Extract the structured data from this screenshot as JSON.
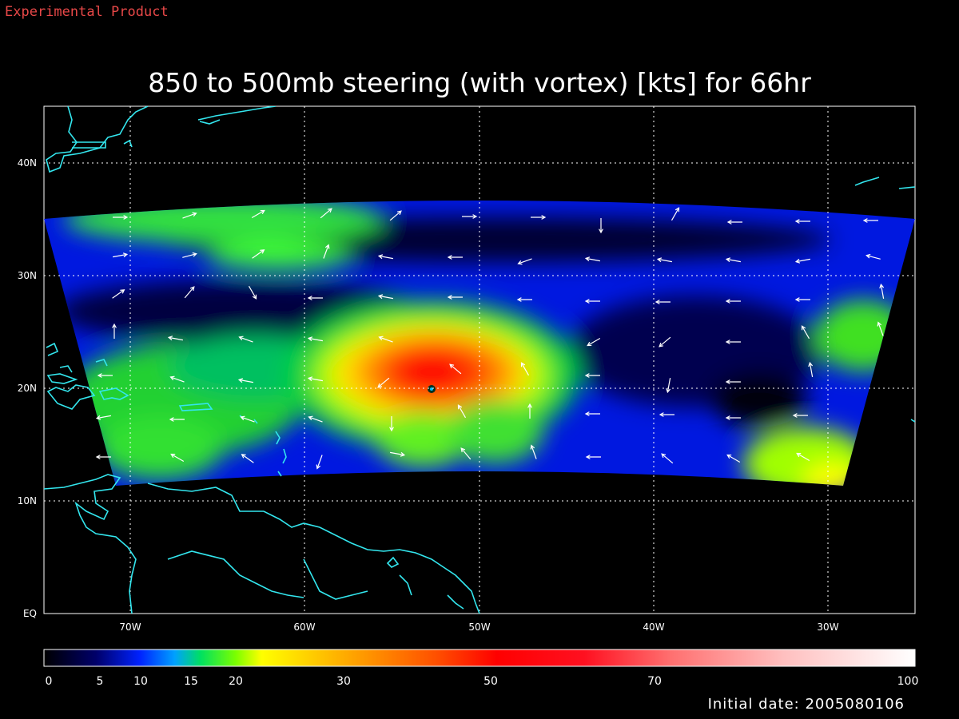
{
  "header": {
    "experimental_label": "Experimental Product"
  },
  "title": "850 to 500mb steering (with vortex) [kts] for 66hr",
  "axes": {
    "lon_labels": [
      "70W",
      "60W",
      "50W",
      "40W",
      "30W"
    ],
    "lat_labels": [
      "EQ",
      "10N",
      "20N",
      "30N",
      "40N"
    ]
  },
  "colorbar": {
    "tick_labels": [
      "0",
      "5",
      "10",
      "15",
      "20",
      "30",
      "50",
      "70",
      "100"
    ]
  },
  "footer": {
    "initial_date": "Initial date: 2005080106"
  },
  "colors": {
    "coastline": "#33e6ee",
    "grid": "#ffffff",
    "experimental_label": "#e84848",
    "background": "#000000"
  }
}
